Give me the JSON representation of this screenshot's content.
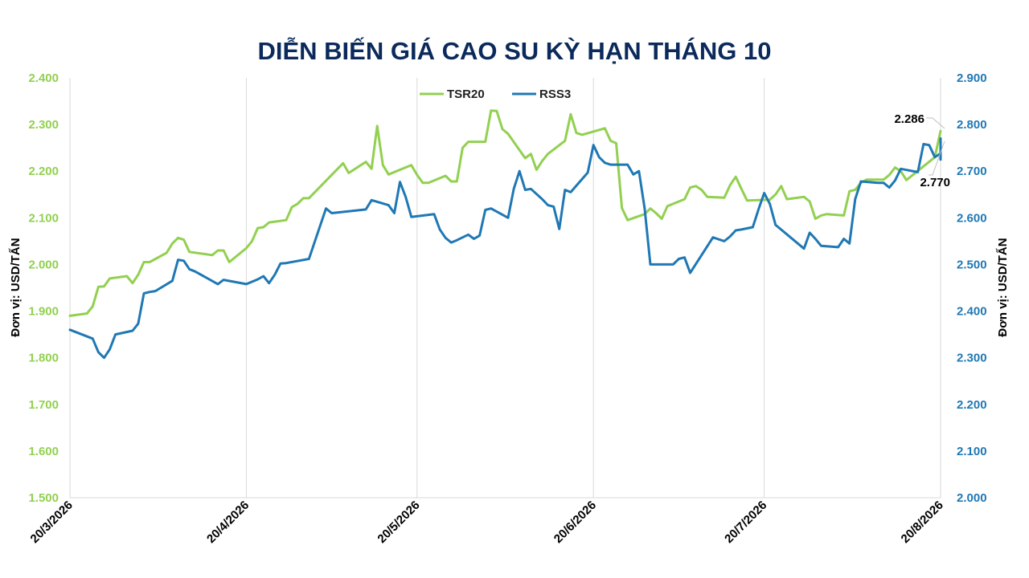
{
  "chart_data": {
    "type": "line",
    "title": "DIỄN BIẾN GIÁ CAO SU KỲ HẠN THÁNG 10",
    "y_left_label": "Đơn vị: USD/TẤN",
    "y_right_label": "Đơn vị: USD/TẤN",
    "y_left_lim": [
      1500,
      2400
    ],
    "y_right_lim": [
      2000,
      2900
    ],
    "y_left_ticks": [
      "1.500",
      "1.600",
      "1.700",
      "1.800",
      "1.900",
      "2.000",
      "2.100",
      "2.200",
      "2.300",
      "2.400"
    ],
    "y_right_ticks": [
      "2.000",
      "2.100",
      "2.200",
      "2.300",
      "2.400",
      "2.500",
      "2.600",
      "2.700",
      "2.800",
      "2.900"
    ],
    "x_range": [
      "2026-03-20",
      "2026-08-20"
    ],
    "x_ticks": [
      {
        "date": "2026-03-20",
        "label": "20/3/2026"
      },
      {
        "date": "2026-04-20",
        "label": "20/4/2026"
      },
      {
        "date": "2026-05-20",
        "label": "20/5/2026"
      },
      {
        "date": "2026-06-20",
        "label": "20/6/2026"
      },
      {
        "date": "2026-07-20",
        "label": "20/7/2026"
      },
      {
        "date": "2026-08-20",
        "label": "20/8/2026"
      }
    ],
    "grid": "vertical",
    "legend_position": "top-center",
    "colors": {
      "TSR20": "#92d050",
      "RSS3": "#1f78b4"
    },
    "series": [
      {
        "name": "TSR20",
        "axis": "left",
        "points": [
          [
            "2026-03-20",
            1890
          ],
          [
            "2026-03-23",
            1895
          ],
          [
            "2026-03-24",
            1910
          ],
          [
            "2026-03-25",
            1952
          ],
          [
            "2026-03-26",
            1953
          ],
          [
            "2026-03-27",
            1970
          ],
          [
            "2026-03-30",
            1975
          ],
          [
            "2026-03-31",
            1960
          ],
          [
            "2026-04-01",
            1978
          ],
          [
            "2026-04-02",
            2005
          ],
          [
            "2026-04-03",
            2005
          ],
          [
            "2026-04-06",
            2025
          ],
          [
            "2026-04-07",
            2045
          ],
          [
            "2026-04-08",
            2057
          ],
          [
            "2026-04-09",
            2053
          ],
          [
            "2026-04-10",
            2027
          ],
          [
            "2026-04-14",
            2020
          ],
          [
            "2026-04-15",
            2030
          ],
          [
            "2026-04-16",
            2030
          ],
          [
            "2026-04-17",
            2005
          ],
          [
            "2026-04-20",
            2035
          ],
          [
            "2026-04-21",
            2050
          ],
          [
            "2026-04-22",
            2078
          ],
          [
            "2026-04-23",
            2080
          ],
          [
            "2026-04-24",
            2090
          ],
          [
            "2026-04-27",
            2095
          ],
          [
            "2026-04-28",
            2123
          ],
          [
            "2026-04-29",
            2130
          ],
          [
            "2026-04-30",
            2142
          ],
          [
            "2026-05-01",
            2142
          ],
          [
            "2026-05-07",
            2217
          ],
          [
            "2026-05-08",
            2196
          ],
          [
            "2026-05-11",
            2220
          ],
          [
            "2026-05-12",
            2205
          ],
          [
            "2026-05-13",
            2297
          ],
          [
            "2026-05-14",
            2213
          ],
          [
            "2026-05-15",
            2193
          ],
          [
            "2026-05-19",
            2213
          ],
          [
            "2026-05-20",
            2192
          ],
          [
            "2026-05-21",
            2175
          ],
          [
            "2026-05-22",
            2175
          ],
          [
            "2026-05-25",
            2190
          ],
          [
            "2026-05-26",
            2178
          ],
          [
            "2026-05-27",
            2178
          ],
          [
            "2026-05-28",
            2250
          ],
          [
            "2026-05-29",
            2263
          ],
          [
            "2026-06-01",
            2263
          ],
          [
            "2026-06-02",
            2330
          ],
          [
            "2026-06-03",
            2329
          ],
          [
            "2026-06-04",
            2290
          ],
          [
            "2026-06-05",
            2280
          ],
          [
            "2026-06-08",
            2228
          ],
          [
            "2026-06-09",
            2237
          ],
          [
            "2026-06-10",
            2203
          ],
          [
            "2026-06-11",
            2222
          ],
          [
            "2026-06-12",
            2237
          ],
          [
            "2026-06-15",
            2265
          ],
          [
            "2026-06-16",
            2322
          ],
          [
            "2026-06-17",
            2282
          ],
          [
            "2026-06-18",
            2278
          ],
          [
            "2026-06-22",
            2292
          ],
          [
            "2026-06-23",
            2265
          ],
          [
            "2026-06-24",
            2260
          ],
          [
            "2026-06-25",
            2121
          ],
          [
            "2026-06-26",
            2095
          ],
          [
            "2026-06-29",
            2108
          ],
          [
            "2026-06-30",
            2120
          ],
          [
            "2026-07-01",
            2110
          ],
          [
            "2026-07-02",
            2098
          ],
          [
            "2026-07-03",
            2125
          ],
          [
            "2026-07-06",
            2140
          ],
          [
            "2026-07-07",
            2165
          ],
          [
            "2026-07-08",
            2168
          ],
          [
            "2026-07-09",
            2160
          ],
          [
            "2026-07-10",
            2145
          ],
          [
            "2026-07-13",
            2143
          ],
          [
            "2026-07-14",
            2170
          ],
          [
            "2026-07-15",
            2188
          ],
          [
            "2026-07-16",
            2162
          ],
          [
            "2026-07-17",
            2137
          ],
          [
            "2026-07-21",
            2139
          ],
          [
            "2026-07-22",
            2150
          ],
          [
            "2026-07-23",
            2168
          ],
          [
            "2026-07-24",
            2140
          ],
          [
            "2026-07-27",
            2145
          ],
          [
            "2026-07-28",
            2135
          ],
          [
            "2026-07-29",
            2098
          ],
          [
            "2026-07-30",
            2105
          ],
          [
            "2026-07-31",
            2108
          ],
          [
            "2026-08-03",
            2105
          ],
          [
            "2026-08-04",
            2157
          ],
          [
            "2026-08-05",
            2160
          ],
          [
            "2026-08-06",
            2175
          ],
          [
            "2026-08-07",
            2182
          ],
          [
            "2026-08-10",
            2182
          ],
          [
            "2026-08-11",
            2192
          ],
          [
            "2026-08-12",
            2208
          ],
          [
            "2026-08-13",
            2200
          ],
          [
            "2026-08-14",
            2181
          ],
          [
            "2026-08-19",
            2230
          ],
          [
            "2026-08-20",
            2286
          ]
        ]
      },
      {
        "name": "RSS3",
        "axis": "right",
        "points": [
          [
            "2026-03-20",
            2360
          ],
          [
            "2026-03-24",
            2341
          ],
          [
            "2026-03-25",
            2312
          ],
          [
            "2026-03-26",
            2300
          ],
          [
            "2026-03-27",
            2318
          ],
          [
            "2026-03-28",
            2350
          ],
          [
            "2026-03-31",
            2358
          ],
          [
            "2026-04-01",
            2373
          ],
          [
            "2026-04-02",
            2438
          ],
          [
            "2026-04-03",
            2441
          ],
          [
            "2026-04-04",
            2443
          ],
          [
            "2026-04-07",
            2465
          ],
          [
            "2026-04-08",
            2510
          ],
          [
            "2026-04-09",
            2508
          ],
          [
            "2026-04-10",
            2490
          ],
          [
            "2026-04-11",
            2485
          ],
          [
            "2026-04-15",
            2458
          ],
          [
            "2026-04-16",
            2467
          ],
          [
            "2026-04-20",
            2458
          ],
          [
            "2026-04-22",
            2468
          ],
          [
            "2026-04-23",
            2475
          ],
          [
            "2026-04-24",
            2460
          ],
          [
            "2026-04-25",
            2478
          ],
          [
            "2026-04-26",
            2502
          ],
          [
            "2026-04-27",
            2503
          ],
          [
            "2026-05-01",
            2512
          ],
          [
            "2026-05-04",
            2620
          ],
          [
            "2026-05-05",
            2610
          ],
          [
            "2026-05-11",
            2618
          ],
          [
            "2026-05-12",
            2638
          ],
          [
            "2026-05-15",
            2627
          ],
          [
            "2026-05-16",
            2610
          ],
          [
            "2026-05-17",
            2677
          ],
          [
            "2026-05-18",
            2645
          ],
          [
            "2026-05-19",
            2602
          ],
          [
            "2026-05-23",
            2608
          ],
          [
            "2026-05-24",
            2575
          ],
          [
            "2026-05-25",
            2557
          ],
          [
            "2026-05-26",
            2547
          ],
          [
            "2026-05-27",
            2552
          ],
          [
            "2026-05-29",
            2564
          ],
          [
            "2026-05-30",
            2555
          ],
          [
            "2026-05-31",
            2562
          ],
          [
            "2026-06-01",
            2617
          ],
          [
            "2026-06-02",
            2620
          ],
          [
            "2026-06-05",
            2600
          ],
          [
            "2026-06-06",
            2662
          ],
          [
            "2026-06-07",
            2700
          ],
          [
            "2026-06-08",
            2660
          ],
          [
            "2026-06-09",
            2662
          ],
          [
            "2026-06-11",
            2640
          ],
          [
            "2026-06-12",
            2627
          ],
          [
            "2026-06-13",
            2624
          ],
          [
            "2026-06-14",
            2576
          ],
          [
            "2026-06-15",
            2660
          ],
          [
            "2026-06-16",
            2655
          ],
          [
            "2026-06-19",
            2697
          ],
          [
            "2026-06-20",
            2756
          ],
          [
            "2026-06-21",
            2730
          ],
          [
            "2026-06-22",
            2718
          ],
          [
            "2026-06-23",
            2714
          ],
          [
            "2026-06-26",
            2714
          ],
          [
            "2026-06-27",
            2693
          ],
          [
            "2026-06-28",
            2700
          ],
          [
            "2026-06-29",
            2620
          ],
          [
            "2026-06-30",
            2500
          ],
          [
            "2026-07-04",
            2500
          ],
          [
            "2026-07-05",
            2512
          ],
          [
            "2026-07-06",
            2515
          ],
          [
            "2026-07-07",
            2482
          ],
          [
            "2026-07-11",
            2558
          ],
          [
            "2026-07-13",
            2550
          ],
          [
            "2026-07-14",
            2560
          ],
          [
            "2026-07-15",
            2573
          ],
          [
            "2026-07-16",
            2575
          ],
          [
            "2026-07-18",
            2580
          ],
          [
            "2026-07-19",
            2618
          ],
          [
            "2026-07-20",
            2653
          ],
          [
            "2026-07-21",
            2630
          ],
          [
            "2026-07-22",
            2585
          ],
          [
            "2026-07-27",
            2534
          ],
          [
            "2026-07-28",
            2568
          ],
          [
            "2026-07-29",
            2555
          ],
          [
            "2026-07-30",
            2540
          ],
          [
            "2026-08-02",
            2537
          ],
          [
            "2026-08-03",
            2555
          ],
          [
            "2026-08-04",
            2545
          ],
          [
            "2026-08-05",
            2640
          ],
          [
            "2026-08-06",
            2678
          ],
          [
            "2026-08-09",
            2675
          ],
          [
            "2026-08-10",
            2675
          ],
          [
            "2026-08-11",
            2665
          ],
          [
            "2026-08-12",
            2680
          ],
          [
            "2026-08-13",
            2705
          ],
          [
            "2026-08-16",
            2698
          ],
          [
            "2026-08-17",
            2758
          ],
          [
            "2026-08-18",
            2756
          ],
          [
            "2026-08-19",
            2730
          ],
          [
            "2026-08-22",
            2738
          ],
          [
            "2026-08-23",
            2725
          ],
          [
            "2026-08-24",
            2768
          ],
          [
            "2026-08-25",
            2770
          ]
        ]
      }
    ],
    "annotations": [
      {
        "series": "TSR20",
        "text": "2.286"
      },
      {
        "series": "RSS3",
        "text": "2.770"
      }
    ]
  }
}
